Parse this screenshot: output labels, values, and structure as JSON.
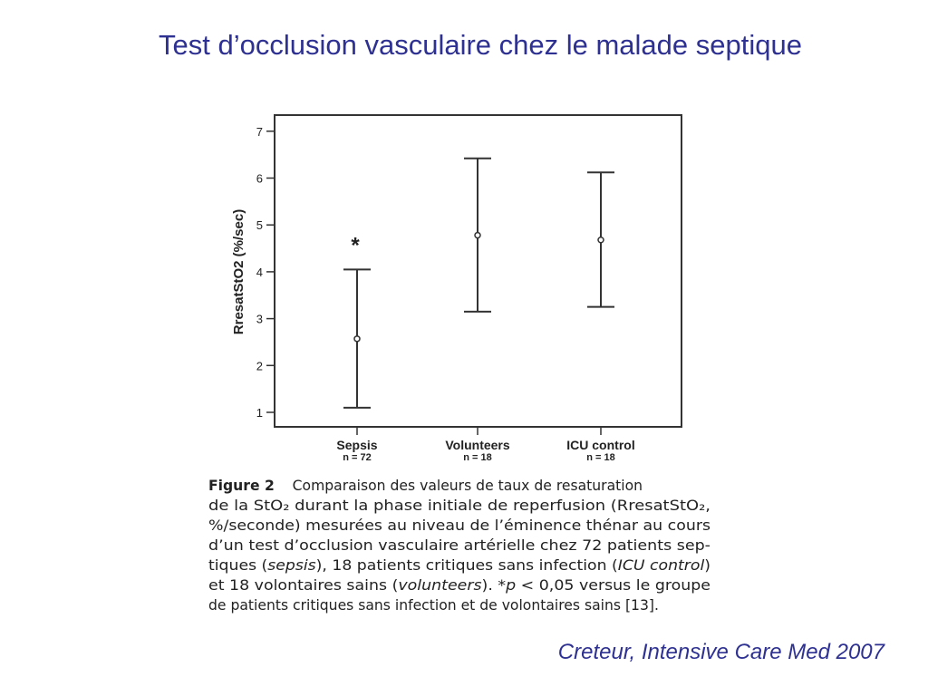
{
  "slide": {
    "title": "Test d’occlusion vasculaire chez le malade septique",
    "credit": "Creteur, Intensive Care Med 2007",
    "title_color": "#2e3192"
  },
  "chart_data": {
    "type": "errorbar",
    "title": "",
    "xlabel": "",
    "ylabel": "RresatStO2 (%/sec)",
    "ylim": [
      0.7,
      7.35
    ],
    "yticks": [
      "1",
      "2",
      "3",
      "4",
      "5",
      "6",
      "7"
    ],
    "categories": [
      "Sepsis",
      "Volunteers",
      "ICU control"
    ],
    "n_labels": [
      "n = 72",
      "n = 18",
      "n = 18"
    ],
    "mean": [
      2.57,
      4.78,
      4.68
    ],
    "upper": [
      4.05,
      6.42,
      6.12
    ],
    "lower": [
      1.1,
      3.15,
      3.25
    ],
    "annotations": [
      {
        "category": "Sepsis",
        "text": "*",
        "y": 4.65
      }
    ],
    "grid": false
  },
  "caption": {
    "label": "Figure 2",
    "lines": [
      [
        "Comparaison des valeurs de taux de resaturation"
      ],
      [
        "de la StO₂ durant la phase initiale de reperfusion (RresatStO₂,"
      ],
      [
        "%/seconde) mesurées au niveau de l’éminence thénar au cours"
      ],
      [
        "d’un test d’occlusion vasculaire artérielle chez 72 patients sep-"
      ],
      [
        "tiques (",
        "sepsis",
        "), 18 patients critiques sans infection (",
        "ICU control",
        ")"
      ],
      [
        "et 18 volontaires sains (",
        "volunteers",
        "). *",
        "p",
        " < 0,05 versus le groupe"
      ],
      [
        "de patients critiques sans infection et de volontaires sains [13]."
      ]
    ]
  }
}
